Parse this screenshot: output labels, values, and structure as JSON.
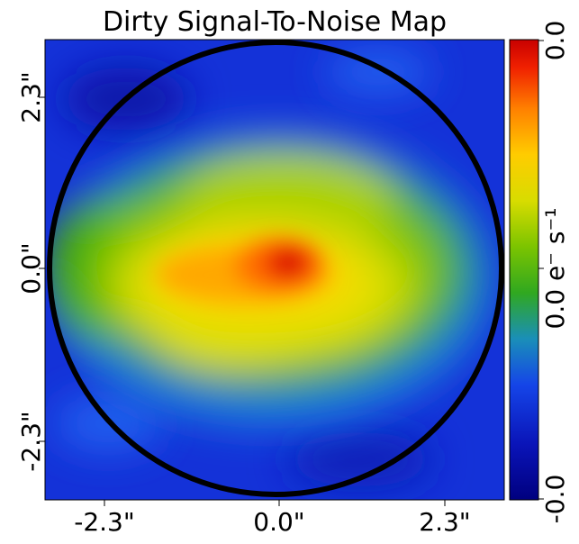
{
  "chart_data": {
    "type": "heatmap",
    "title": "Dirty Signal-To-Noise Map",
    "x_ticks": [
      "-2.3\"",
      "0.0\"",
      "2.3\""
    ],
    "y_ticks": [
      "2.3\"",
      "0.0\"",
      "-2.3\""
    ],
    "colorbar": {
      "ticks": [
        "0.0",
        "0.0",
        "-0.0"
      ],
      "label": "0.0 e⁻ s⁻¹",
      "colormap": [
        "#00007f",
        "#1030e0",
        "#1f6cf0",
        "#1a9aa8",
        "#3aa81a",
        "#8cc800",
        "#e8e000",
        "#ffb000",
        "#ff5a00",
        "#d20000"
      ]
    },
    "xlim": [
      -3.0,
      3.0
    ],
    "ylim": [
      -3.0,
      3.0
    ],
    "mask": "circle",
    "mask_radius": 2.95,
    "peak": {
      "x": 0.1,
      "y": 0.1
    },
    "grid": false,
    "legend": "none",
    "colors": {
      "background_level": "#1432d8",
      "mask_edge": "#000000"
    }
  }
}
